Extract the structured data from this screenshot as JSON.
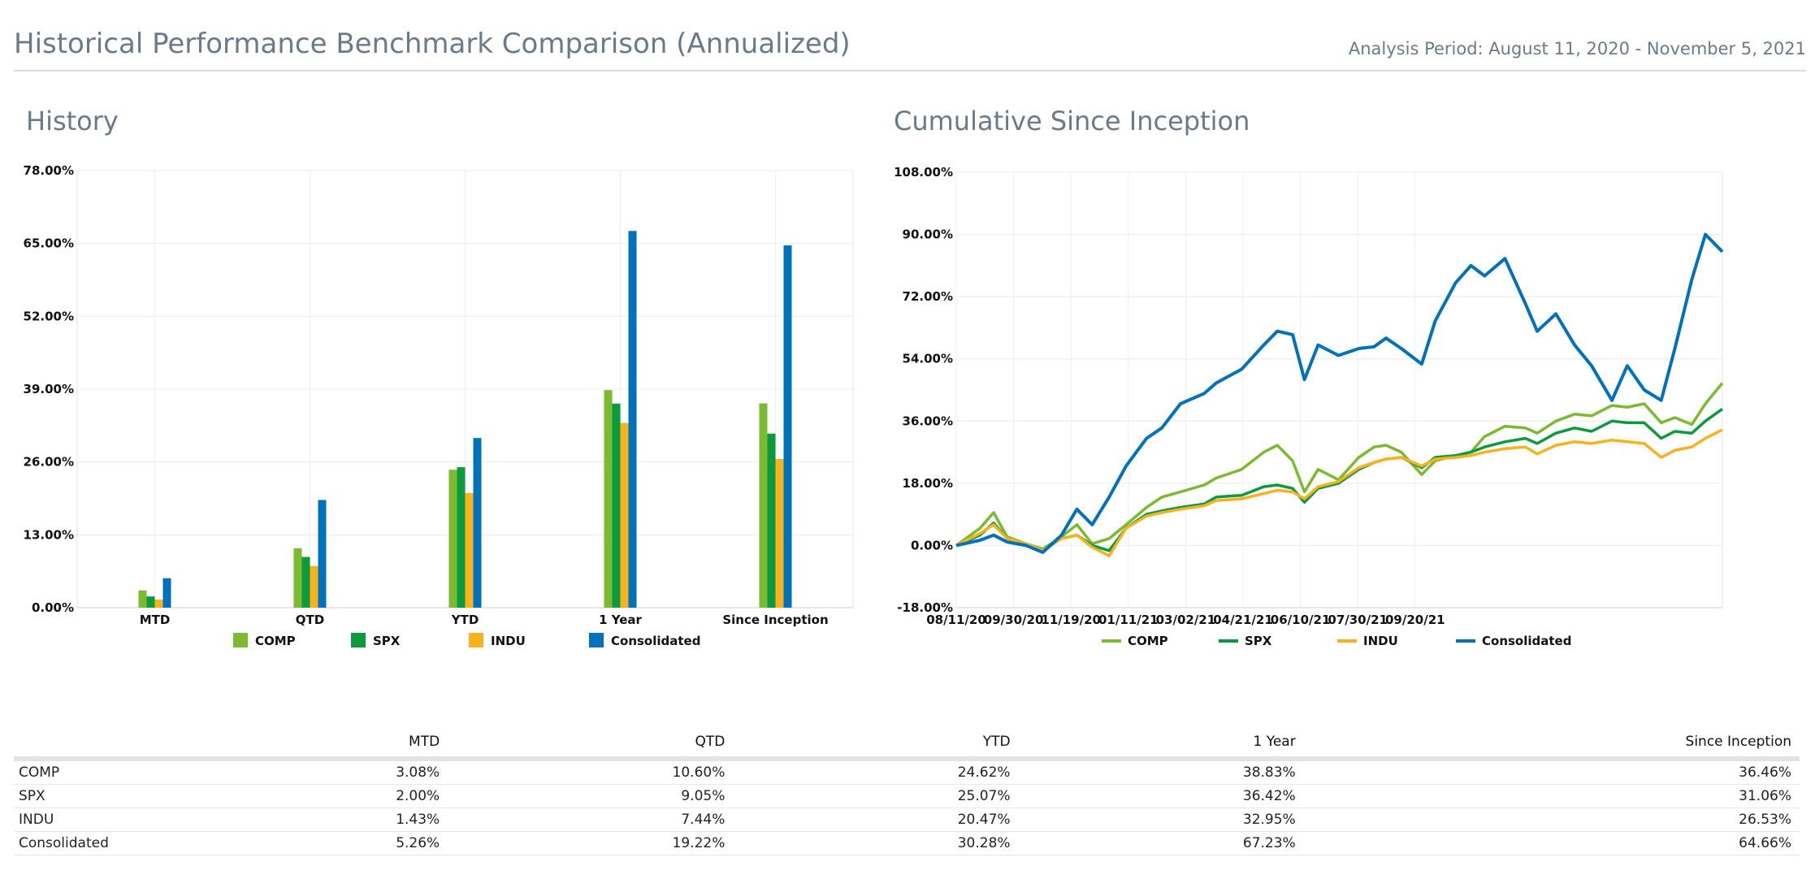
{
  "header": {
    "title": "Historical Performance Benchmark Comparison (Annualized)",
    "period": "Analysis Period: August 11, 2020 - November 5, 2021"
  },
  "colors": {
    "COMP": "#7cba32",
    "SPX": "#0c9a3f",
    "INDU": "#f7b21e",
    "Consolidated": "#0072bc"
  },
  "history": {
    "section_title": "History"
  },
  "cumulative": {
    "section_title": "Cumulative Since Inception"
  },
  "chart_data": [
    {
      "type": "bar",
      "title": "History",
      "categories": [
        "MTD",
        "QTD",
        "YTD",
        "1 Year",
        "Since Inception"
      ],
      "series": [
        {
          "name": "COMP",
          "values": [
            3.08,
            10.6,
            24.62,
            38.83,
            36.46
          ]
        },
        {
          "name": "SPX",
          "values": [
            2.0,
            9.05,
            25.07,
            36.42,
            31.06
          ]
        },
        {
          "name": "INDU",
          "values": [
            1.43,
            7.44,
            20.47,
            32.95,
            26.53
          ]
        },
        {
          "name": "Consolidated",
          "values": [
            5.26,
            19.22,
            30.28,
            67.23,
            64.66
          ]
        }
      ],
      "yticks": [
        "0.00%",
        "13.00%",
        "26.00%",
        "39.00%",
        "52.00%",
        "65.00%",
        "78.00%"
      ],
      "ylim": [
        0,
        78
      ],
      "grid": true,
      "legend": "bottom"
    },
    {
      "type": "line",
      "title": "Cumulative Since Inception",
      "xticks": [
        "08/11/20",
        "09/30/20",
        "11/19/20",
        "01/11/21",
        "03/02/21",
        "04/21/21",
        "06/10/21",
        "07/30/21",
        "09/20/21"
      ],
      "yticks": [
        "-18.00%",
        "0.00%",
        "18.00%",
        "36.00%",
        "54.00%",
        "72.00%",
        "90.00%",
        "108.00%"
      ],
      "ylim": [
        -18,
        108
      ],
      "grid": true,
      "legend": "bottom",
      "x": [
        "2020-08-11",
        "2020-08-25",
        "2020-09-02",
        "2020-09-10",
        "2020-09-21",
        "2020-10-01",
        "2020-10-12",
        "2020-10-21",
        "2020-10-30",
        "2020-11-09",
        "2020-11-19",
        "2020-12-01",
        "2020-12-10",
        "2020-12-21",
        "2021-01-04",
        "2021-01-11",
        "2021-01-26",
        "2021-02-08",
        "2021-02-16",
        "2021-02-25",
        "2021-03-04",
        "2021-03-12",
        "2021-03-24",
        "2021-04-05",
        "2021-04-14",
        "2021-04-21",
        "2021-04-30",
        "2021-05-12",
        "2021-05-20",
        "2021-06-01",
        "2021-06-10",
        "2021-06-18",
        "2021-06-30",
        "2021-07-12",
        "2021-07-19",
        "2021-07-30",
        "2021-08-10",
        "2021-08-20",
        "2021-09-01",
        "2021-09-10",
        "2021-09-20",
        "2021-09-30",
        "2021-10-08",
        "2021-10-18",
        "2021-10-26",
        "2021-11-05"
      ],
      "series": [
        {
          "name": "COMP",
          "values": [
            0.0,
            5.0,
            9.5,
            2.5,
            0.5,
            -1.0,
            2.5,
            6.0,
            0.5,
            2.0,
            6.0,
            11.0,
            14.0,
            15.5,
            17.5,
            19.5,
            22.0,
            27.0,
            29.0,
            24.5,
            15.5,
            22.0,
            19.0,
            25.5,
            28.5,
            29.0,
            27.0,
            20.5,
            24.5,
            26.0,
            27.0,
            31.5,
            34.5,
            34.0,
            32.5,
            36.0,
            38.0,
            37.5,
            40.5,
            40.0,
            41.0,
            35.5,
            37.0,
            35.0,
            41.0,
            47.0
          ]
        },
        {
          "name": "SPX",
          "values": [
            0.0,
            3.0,
            6.5,
            2.0,
            0.0,
            -1.5,
            2.0,
            3.0,
            0.0,
            -1.5,
            5.0,
            9.0,
            10.0,
            11.0,
            12.0,
            14.0,
            14.5,
            17.0,
            17.5,
            16.5,
            12.5,
            16.5,
            18.0,
            22.0,
            24.0,
            25.0,
            25.5,
            22.5,
            25.5,
            26.0,
            27.0,
            28.5,
            30.0,
            31.0,
            29.5,
            32.5,
            34.0,
            33.0,
            36.0,
            35.5,
            35.5,
            31.0,
            33.0,
            32.5,
            36.0,
            39.5
          ]
        },
        {
          "name": "INDU",
          "values": [
            0.0,
            3.5,
            6.0,
            2.0,
            0.5,
            -1.5,
            2.0,
            3.0,
            -0.5,
            -3.0,
            5.0,
            8.5,
            9.5,
            10.5,
            11.5,
            13.0,
            13.5,
            15.0,
            16.0,
            15.5,
            13.5,
            17.0,
            18.5,
            22.5,
            24.0,
            25.0,
            25.5,
            23.0,
            25.0,
            25.5,
            26.0,
            27.0,
            28.0,
            28.5,
            26.5,
            29.0,
            30.0,
            29.5,
            30.5,
            30.0,
            29.5,
            25.5,
            27.5,
            28.5,
            31.0,
            33.5
          ]
        },
        {
          "name": "Consolidated",
          "values": [
            0.0,
            1.5,
            3.0,
            1.0,
            0.0,
            -2.0,
            3.0,
            10.5,
            6.0,
            14.0,
            23.0,
            31.0,
            34.0,
            41.0,
            44.0,
            47.0,
            51.0,
            58.0,
            62.0,
            61.0,
            48.0,
            58.0,
            55.0,
            57.0,
            57.5,
            60.0,
            57.0,
            52.5,
            65.0,
            76.0,
            81.0,
            78.0,
            83.0,
            70.0,
            62.0,
            67.0,
            58.0,
            52.0,
            42.0,
            52.0,
            45.0,
            42.0,
            57.0,
            77.0,
            90.0,
            85.0
          ]
        }
      ]
    }
  ],
  "table": {
    "columns": [
      "",
      "MTD",
      "QTD",
      "YTD",
      "1 Year",
      "Since Inception"
    ],
    "rows": [
      {
        "label": "COMP",
        "cells": [
          "3.08%",
          "10.60%",
          "24.62%",
          "38.83%",
          "36.46%"
        ]
      },
      {
        "label": "SPX",
        "cells": [
          "2.00%",
          "9.05%",
          "25.07%",
          "36.42%",
          "31.06%"
        ]
      },
      {
        "label": "INDU",
        "cells": [
          "1.43%",
          "7.44%",
          "20.47%",
          "32.95%",
          "26.53%"
        ]
      },
      {
        "label": "Consolidated",
        "cells": [
          "5.26%",
          "19.22%",
          "30.28%",
          "67.23%",
          "64.66%"
        ]
      }
    ]
  }
}
